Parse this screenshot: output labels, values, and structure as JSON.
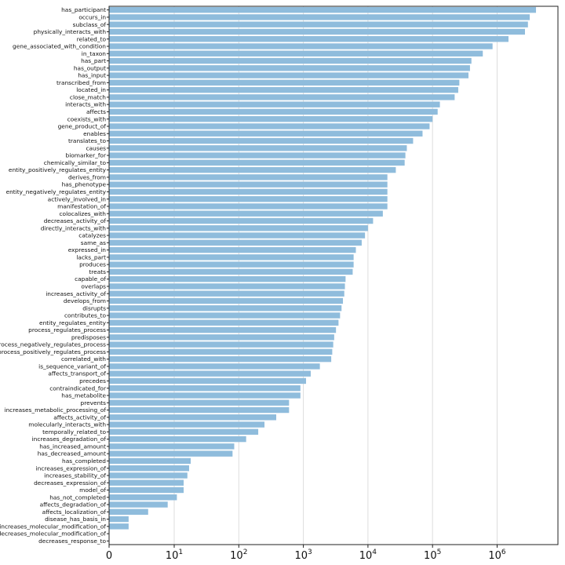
{
  "chart_data": {
    "type": "bar",
    "orientation": "horizontal",
    "x_scale": "symlog",
    "x_ticks": [
      0,
      10,
      100,
      1000,
      10000,
      100000,
      1000000
    ],
    "x_tick_labels": [
      "0",
      "10^1",
      "10^2",
      "10^3",
      "10^4",
      "10^5",
      "10^6"
    ],
    "xlim": [
      0,
      6000000
    ],
    "grid": "x-only",
    "bar_color": "#8fbcdc",
    "categories": [
      "has_participant",
      "occurs_in",
      "subclass_of",
      "physically_interacts_with",
      "related_to",
      "gene_associated_with_condition",
      "in_taxon",
      "has_part",
      "has_output",
      "has_input",
      "transcribed_from",
      "located_in",
      "close_match",
      "interacts_with",
      "affects",
      "coexists_with",
      "gene_product_of",
      "enables",
      "translates_to",
      "causes",
      "biomarker_for",
      "chemically_similar_to",
      "entity_positively_regulates_entity",
      "derives_from",
      "has_phenotype",
      "entity_negatively_regulates_entity",
      "actively_involved_in",
      "manifestation_of",
      "colocalizes_with",
      "decreases_activity_of",
      "directly_interacts_with",
      "catalyzes",
      "same_as",
      "expressed_in",
      "lacks_part",
      "produces",
      "treats",
      "capable_of",
      "overlaps",
      "increases_activity_of",
      "develops_from",
      "disrupts",
      "contributes_to",
      "entity_regulates_entity",
      "process_regulates_process",
      "predisposes",
      "process_negatively_regulates_process",
      "process_positively_regulates_process",
      "correlated_with",
      "is_sequence_variant_of",
      "affects_transport_of",
      "precedes",
      "contraindicated_for",
      "has_metabolite",
      "prevents",
      "increases_metabolic_processing_of",
      "affects_activity_of",
      "molecularly_interacts_with",
      "temporally_related_to",
      "increases_degradation_of",
      "has_increased_amount",
      "has_decreased_amount",
      "has_completed",
      "increases_expression_of",
      "increases_stability_of",
      "decreases_expression_of",
      "model_of",
      "has_not_completed",
      "affects_degradation_of",
      "affects_localization_of",
      "disease_has_basis_in",
      "increases_molecular_modification_of",
      "decreases_molecular_modification_of",
      "decreases_response_to"
    ],
    "values": [
      4000000,
      3200000,
      3000000,
      2700000,
      1500000,
      850000,
      600000,
      400000,
      380000,
      360000,
      260000,
      250000,
      220000,
      130000,
      120000,
      100000,
      90000,
      70000,
      50000,
      40000,
      38000,
      37000,
      27000,
      20000,
      20000,
      20000,
      20000,
      20000,
      17000,
      12000,
      10000,
      9000,
      8000,
      6500,
      6000,
      6000,
      5800,
      4500,
      4400,
      4300,
      4100,
      3900,
      3700,
      3500,
      3200,
      3000,
      2900,
      2800,
      2700,
      1800,
      1300,
      1100,
      900,
      900,
      600,
      600,
      380,
      250,
      200,
      130,
      85,
      80,
      18,
      17,
      16,
      14,
      14,
      11,
      9,
      6,
      3,
      3,
      0,
      0
    ]
  }
}
